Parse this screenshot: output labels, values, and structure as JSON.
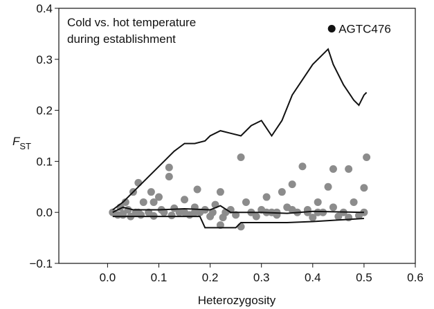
{
  "chart_data": {
    "type": "scatter",
    "annotation": [
      "Cold vs. hot temperature",
      "during establishment"
    ],
    "xlabel": "Heterozygosity",
    "ylabel": {
      "main": "F",
      "sub": "ST"
    },
    "xlim": [
      -0.095,
      0.6
    ],
    "ylim": [
      -0.1,
      0.4
    ],
    "xticks": [
      {
        "value": 0,
        "label": "0.0"
      },
      0.1,
      0.2,
      0.3,
      0.4,
      0.5,
      0.6
    ],
    "yticks": [
      {
        "value": -0.1,
        "label": "−0.1"
      },
      {
        "value": 0,
        "label": "0.0"
      },
      0.1,
      0.2,
      0.3,
      0.4
    ],
    "points": {
      "color": "#8c8c8c",
      "x": [
        0.01,
        0.02,
        0.025,
        0.03,
        0.035,
        0.04,
        0.045,
        0.05,
        0.055,
        0.06,
        0.065,
        0.07,
        0.08,
        0.085,
        0.09,
        0.1,
        0.105,
        0.11,
        0.12,
        0.125,
        0.13,
        0.14,
        0.15,
        0.16,
        0.17,
        0.175,
        0.18,
        0.19,
        0.2,
        0.205,
        0.21,
        0.22,
        0.225,
        0.23,
        0.24,
        0.25,
        0.26,
        0.27,
        0.28,
        0.29,
        0.3,
        0.31,
        0.32,
        0.33,
        0.34,
        0.35,
        0.36,
        0.37,
        0.38,
        0.39,
        0.4,
        0.41,
        0.42,
        0.43,
        0.44,
        0.45,
        0.46,
        0.47,
        0.48,
        0.49,
        0.5,
        0.505,
        0.03,
        0.06,
        0.12,
        0.17,
        0.26,
        0.31,
        0.36,
        0.41,
        0.47,
        0.5,
        0.22,
        0.33,
        0.44,
        0.15,
        0.09,
        0.39
      ],
      "y": [
        0.0,
        -0.005,
        0.01,
        -0.003,
        0.02,
        0.005,
        -0.008,
        0.04,
        0.0,
        0.058,
        -0.005,
        0.02,
        0.0,
        0.04,
        -0.007,
        0.03,
        0.005,
        0.0,
        0.07,
        -0.006,
        0.008,
        0.0,
        0.025,
        -0.005,
        0.01,
        0.045,
        0.0,
        0.005,
        -0.008,
        0.0,
        0.015,
        0.04,
        -0.01,
        0.0,
        0.005,
        -0.005,
        0.108,
        0.02,
        0.0,
        -0.008,
        0.005,
        0.03,
        0.0,
        -0.005,
        0.04,
        0.01,
        0.055,
        0.0,
        0.09,
        0.005,
        -0.01,
        0.02,
        0.0,
        0.05,
        0.01,
        -0.008,
        0.0,
        0.085,
        0.02,
        -0.006,
        0.048,
        0.108,
        -0.005,
        0.0,
        0.088,
        0.0,
        -0.028,
        0.0,
        0.005,
        0.0,
        -0.01,
        0.0,
        -0.025,
        0.0,
        0.085,
        0.0,
        0.02,
        0.0
      ]
    },
    "lines": [
      {
        "color": "#111111",
        "x": [
          0.01,
          0.03,
          0.05,
          0.07,
          0.09,
          0.11,
          0.13,
          0.15,
          0.17,
          0.19,
          0.2,
          0.22,
          0.24,
          0.26,
          0.28,
          0.3,
          0.32,
          0.34,
          0.36,
          0.38,
          0.4,
          0.42,
          0.43,
          0.44,
          0.46,
          0.48,
          0.49,
          0.5,
          0.505
        ],
        "y": [
          0.005,
          0.02,
          0.04,
          0.06,
          0.08,
          0.1,
          0.12,
          0.135,
          0.135,
          0.14,
          0.15,
          0.16,
          0.155,
          0.15,
          0.17,
          0.18,
          0.15,
          0.18,
          0.23,
          0.26,
          0.29,
          0.31,
          0.32,
          0.29,
          0.25,
          0.22,
          0.21,
          0.23,
          0.235
        ]
      },
      {
        "color": "#111111",
        "x": [
          0.01,
          0.03,
          0.05,
          0.1,
          0.15,
          0.2,
          0.22,
          0.24,
          0.3,
          0.35,
          0.4,
          0.45,
          0.5
        ],
        "y": [
          0.0,
          0.01,
          0.005,
          0.005,
          0.007,
          0.005,
          0.013,
          0.0,
          0.0,
          -0.002,
          0.002,
          0.001,
          0.0
        ]
      },
      {
        "color": "#111111",
        "x": [
          0.01,
          0.18,
          0.19,
          0.25,
          0.26,
          0.3,
          0.35,
          0.4,
          0.45,
          0.5
        ],
        "y": [
          -0.008,
          -0.008,
          -0.03,
          -0.03,
          -0.02,
          -0.02,
          -0.02,
          -0.018,
          -0.015,
          -0.012
        ]
      }
    ],
    "highlight": {
      "label": "AGTC476",
      "x": 0.437,
      "y": 0.36,
      "color": "#111111"
    }
  }
}
